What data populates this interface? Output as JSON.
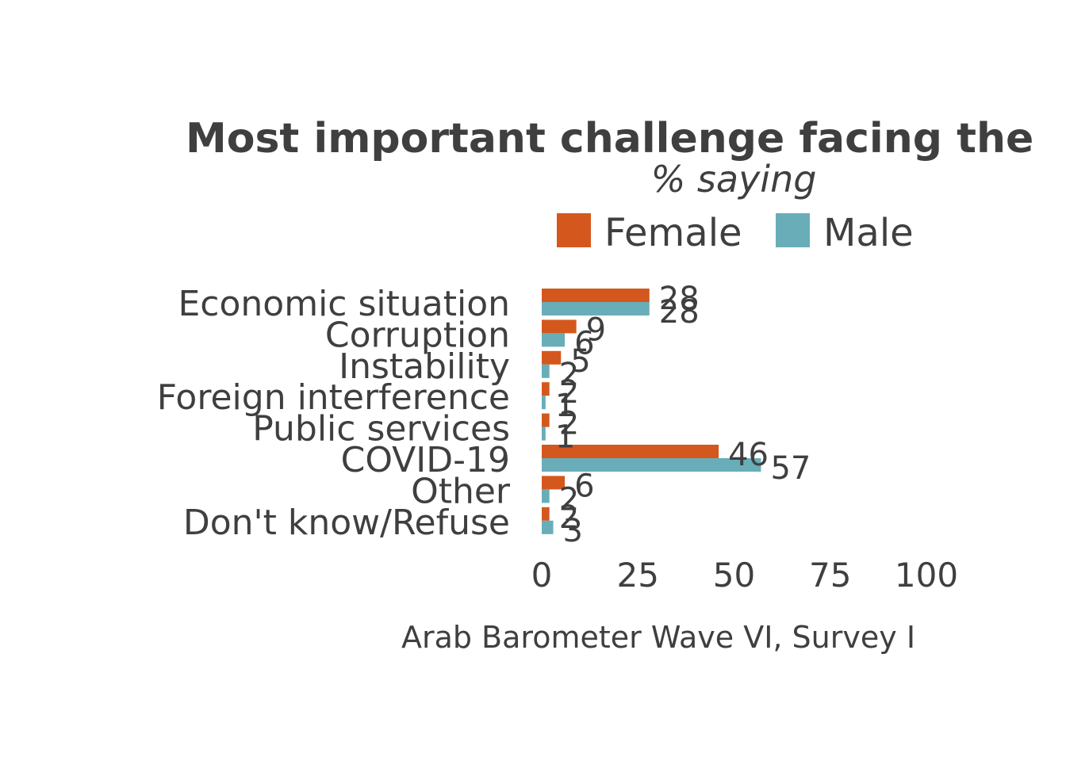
{
  "chart_data": {
    "type": "bar",
    "orientation": "horizontal",
    "title": "Most important challenge facing the",
    "subtitle": "% saying",
    "caption": "Arab Barometer Wave VI, Survey I",
    "categories": [
      "Economic situation",
      "Corruption",
      "Instability",
      "Foreign interference",
      "Public services",
      "COVID-19",
      "Other",
      "Don't know/Refuse"
    ],
    "series": [
      {
        "name": "Female",
        "color": "#d4581d",
        "values": [
          28,
          9,
          5,
          2,
          2,
          46,
          6,
          2
        ]
      },
      {
        "name": "Male",
        "color": "#69adb9",
        "values": [
          28,
          6,
          2,
          1,
          1,
          57,
          2,
          3
        ]
      }
    ],
    "xlim": [
      0,
      100
    ],
    "x_ticks": [
      "0",
      "25",
      "50",
      "75",
      "100"
    ],
    "legend_position": "top",
    "grid": false
  }
}
